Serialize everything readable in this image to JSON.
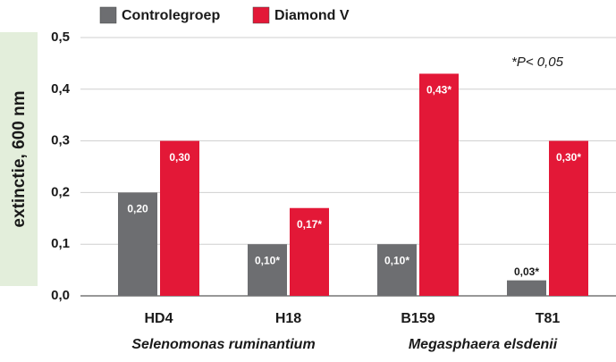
{
  "chart_data": {
    "type": "bar",
    "y_label": "extinctie, 600 nm",
    "annotation": "*P< 0,05",
    "categories": [
      "HD4",
      "H18",
      "B159",
      "T81"
    ],
    "x_group_labels": [
      "Selenomonas ruminantium",
      "Megasphaera elsdenii"
    ],
    "series": [
      {
        "name": "Controlegroep",
        "color": "#6d6e71",
        "values": [
          0.2,
          0.1,
          0.1,
          0.03
        ],
        "value_labels": [
          "0,20",
          "0,10*",
          "0,10*",
          "0,03*"
        ]
      },
      {
        "name": "Diamond V",
        "color": "#e31837",
        "values": [
          0.3,
          0.17,
          0.43,
          0.3
        ],
        "value_labels": [
          "0,30",
          "0,17*",
          "0,43*",
          "0,30*"
        ]
      }
    ],
    "ylim": [
      0,
      0.5
    ],
    "yticks": [
      {
        "value": 0,
        "label": "0,0"
      },
      {
        "value": 0.1,
        "label": "0,1"
      },
      {
        "value": 0.2,
        "label": "0,2"
      },
      {
        "value": 0.3,
        "label": "0,3"
      },
      {
        "value": 0.4,
        "label": "0,4"
      },
      {
        "value": 0.5,
        "label": "0,5"
      }
    ],
    "grid": true
  }
}
